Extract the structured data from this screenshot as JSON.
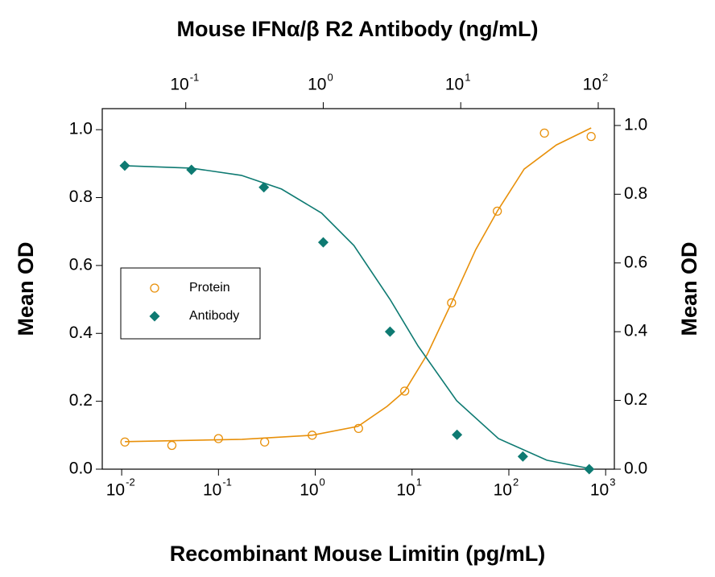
{
  "chart_data": {
    "type": "scatter",
    "title": "Mouse IFNα/β R2 Antibody (ng/mL)",
    "x_label": "Recombinant Mouse Limitin (pg/mL)",
    "y_label": "Mean OD",
    "y2_label": "Mean OD",
    "x_log": true,
    "x2_log": true,
    "xlim": [
      0.0063,
      1230
    ],
    "xticks": [
      {
        "value": 0.01,
        "label": "10",
        "exponent": "-2"
      },
      {
        "value": 0.1,
        "label": "10",
        "exponent": "-1"
      },
      {
        "value": 1,
        "label": "10",
        "exponent": "0"
      },
      {
        "value": 10,
        "label": "10",
        "exponent": "1"
      },
      {
        "value": 100,
        "label": "10",
        "exponent": "2"
      },
      {
        "value": 1000,
        "label": "10",
        "exponent": "3"
      }
    ],
    "x2lim": [
      0.0247,
      131
    ],
    "x2ticks": [
      {
        "value": 0.1,
        "label": "10",
        "exponent": "-1"
      },
      {
        "value": 1,
        "label": "10",
        "exponent": "0"
      },
      {
        "value": 10,
        "label": "10",
        "exponent": "1"
      },
      {
        "value": 100,
        "label": "10",
        "exponent": "2"
      }
    ],
    "ylim": [
      0,
      1.062
    ],
    "yticks": [
      {
        "value": 0,
        "label": "0.0"
      },
      0.2,
      0.4,
      0.6,
      0.8,
      {
        "value": 1,
        "label": "1.0"
      }
    ],
    "y2lim": [
      0,
      1.049
    ],
    "y2ticks": [
      {
        "value": 0,
        "label": "0.0"
      },
      0.2,
      0.4,
      0.6,
      0.8,
      {
        "value": 1,
        "label": "1.0"
      }
    ],
    "legend": "left",
    "series": [
      {
        "name": "Protein",
        "color": "#e8900a",
        "marker": "circle",
        "axis": "y",
        "x_axis": "x",
        "x": [
          0.0108,
          0.033,
          0.1,
          0.3,
          0.93,
          2.8,
          8.4,
          25.6,
          76,
          233,
          708
        ],
        "values": [
          0.08,
          0.07,
          0.09,
          0.08,
          0.1,
          0.12,
          0.23,
          0.49,
          0.76,
          0.99,
          0.98
        ],
        "fit_x": [
          0.0108,
          0.175,
          0.93,
          2.77,
          5.52,
          8.41,
          14.4,
          25.6,
          45.5,
          76.4,
          144,
          310,
          708
        ],
        "fit_values": [
          0.081,
          0.088,
          0.1,
          0.126,
          0.185,
          0.23,
          0.339,
          0.49,
          0.647,
          0.761,
          0.884,
          0.955,
          1.005
        ]
      },
      {
        "name": "Antibody",
        "color": "#0e7a72",
        "marker": "diamond",
        "axis": "y2",
        "x_axis": "x2",
        "x": [
          0.036,
          0.11,
          0.37,
          1.0,
          3.06,
          9.4,
          28.3,
          86
        ],
        "values": [
          0.883,
          0.871,
          0.82,
          0.66,
          0.4,
          0.1,
          0.037,
          0
        ],
        "fit_x": [
          0.036,
          0.11,
          0.254,
          0.497,
          0.973,
          1.67,
          3.06,
          4.9,
          9.35,
          18.8,
          42.3,
          86.3
        ],
        "fit_values": [
          0.883,
          0.876,
          0.855,
          0.815,
          0.745,
          0.651,
          0.494,
          0.358,
          0.199,
          0.089,
          0.026,
          0.002
        ]
      }
    ]
  }
}
